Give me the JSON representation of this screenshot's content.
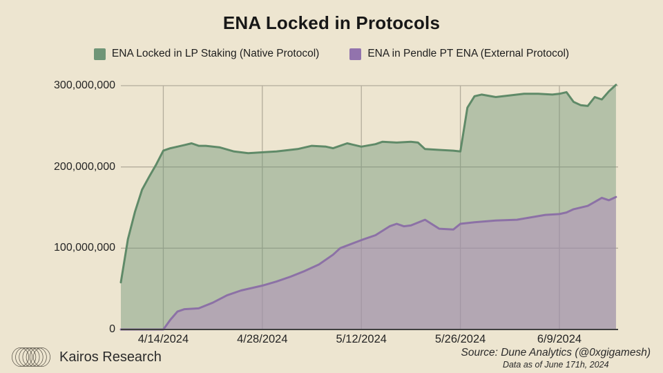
{
  "page": {
    "background": "#EDE5D0"
  },
  "title": "ENA Locked in Protocols",
  "legend": [
    {
      "label": "ENA Locked in LP Staking (Native Protocol)",
      "color": "#6F9577"
    },
    {
      "label": "ENA in Pendle PT ENA (External Protocol)",
      "color": "#9273AD"
    }
  ],
  "footer": {
    "brand": "Kairos Research",
    "source_line1": "Source: Dune Analytics (@0xgigamesh)",
    "source_line2": "Data as of June 171h, 2024"
  },
  "chart_data": {
    "type": "area",
    "stacked": false,
    "title": "ENA Locked in Protocols",
    "values_unit": "ENA tokens, values stored in millions",
    "grid": true,
    "legend_position": "top",
    "colors": {
      "background": "#EDE5D0",
      "gridline": "#B3AC9B",
      "axis_line": "#3F3F3F",
      "green_line": "#5F8A68",
      "green_fill_rgba": "rgba(111,149,119,0.45)",
      "purple_line": "#8C71A6",
      "purple_fill_rgba": "rgba(178,141,189,0.5)"
    },
    "x_axis": {
      "start_date": "4/8/2024",
      "end_date": "6/17/2024",
      "ticks": [
        {
          "date": "4/14",
          "label": "4/14/2024"
        },
        {
          "date": "4/28",
          "label": "4/28/2024"
        },
        {
          "date": "5/12",
          "label": "5/12/2024"
        },
        {
          "date": "5/26",
          "label": "5/26/2024"
        },
        {
          "date": "6/9",
          "label": "6/9/2024"
        }
      ]
    },
    "y_axis": {
      "min": 0,
      "max": 300,
      "ticks": [
        {
          "value": 0,
          "label": "0"
        },
        {
          "value": 100,
          "label": "100,000,000"
        },
        {
          "value": 200,
          "label": "200,000,000"
        },
        {
          "value": 300,
          "label": "300,000,000"
        }
      ]
    },
    "series": [
      {
        "name": "ENA Locked in LP Staking (Native Protocol)",
        "line_color": "#5F8A68",
        "fill_color": "rgba(111,149,119,0.45)",
        "points": [
          [
            "4/8",
            58
          ],
          [
            "4/9",
            111
          ],
          [
            "4/10",
            145
          ],
          [
            "4/11",
            172
          ],
          [
            "4/12",
            188
          ],
          [
            "4/13",
            203
          ],
          [
            "4/14",
            220
          ],
          [
            "4/15",
            223
          ],
          [
            "4/16",
            225
          ],
          [
            "4/17",
            227
          ],
          [
            "4/18",
            229
          ],
          [
            "4/19",
            226
          ],
          [
            "4/20",
            226
          ],
          [
            "4/22",
            224
          ],
          [
            "4/24",
            219
          ],
          [
            "4/26",
            217
          ],
          [
            "4/28",
            218
          ],
          [
            "4/30",
            219
          ],
          [
            "5/3",
            222
          ],
          [
            "5/5",
            226
          ],
          [
            "5/7",
            225
          ],
          [
            "5/8",
            223
          ],
          [
            "5/10",
            229
          ],
          [
            "5/12",
            225
          ],
          [
            "5/14",
            228
          ],
          [
            "5/15",
            231
          ],
          [
            "5/17",
            230
          ],
          [
            "5/19",
            231
          ],
          [
            "5/20",
            230
          ],
          [
            "5/21",
            222
          ],
          [
            "5/23",
            221
          ],
          [
            "5/25",
            220
          ],
          [
            "5/26",
            219
          ],
          [
            "5/27",
            273
          ],
          [
            "5/28",
            287
          ],
          [
            "5/29",
            289
          ],
          [
            "5/31",
            286
          ],
          [
            "6/2",
            288
          ],
          [
            "6/4",
            290
          ],
          [
            "6/6",
            290
          ],
          [
            "6/8",
            289
          ],
          [
            "6/9",
            290
          ],
          [
            "6/10",
            292
          ],
          [
            "6/11",
            280
          ],
          [
            "6/12",
            276
          ],
          [
            "6/13",
            275
          ],
          [
            "6/14",
            286
          ],
          [
            "6/15",
            283
          ],
          [
            "6/16",
            293
          ],
          [
            "6/17",
            301
          ]
        ]
      },
      {
        "name": "ENA in Pendle PT ENA (External Protocol)",
        "line_color": "#8C71A6",
        "fill_color": "rgba(178,141,189,0.5)",
        "points": [
          [
            "4/8",
            0
          ],
          [
            "4/14",
            0
          ],
          [
            "4/15",
            12
          ],
          [
            "4/16",
            22
          ],
          [
            "4/17",
            25
          ],
          [
            "4/19",
            26
          ],
          [
            "4/21",
            33
          ],
          [
            "4/23",
            42
          ],
          [
            "4/25",
            48
          ],
          [
            "4/28",
            54
          ],
          [
            "4/30",
            59
          ],
          [
            "5/2",
            65
          ],
          [
            "5/4",
            72
          ],
          [
            "5/6",
            80
          ],
          [
            "5/8",
            92
          ],
          [
            "5/9",
            100
          ],
          [
            "5/12",
            110
          ],
          [
            "5/14",
            116
          ],
          [
            "5/16",
            127
          ],
          [
            "5/17",
            130
          ],
          [
            "5/18",
            127
          ],
          [
            "5/19",
            128
          ],
          [
            "5/21",
            135
          ],
          [
            "5/23",
            124
          ],
          [
            "5/25",
            123
          ],
          [
            "5/26",
            130
          ],
          [
            "5/28",
            132
          ],
          [
            "5/31",
            134
          ],
          [
            "6/3",
            135
          ],
          [
            "6/5",
            138
          ],
          [
            "6/7",
            141
          ],
          [
            "6/9",
            142
          ],
          [
            "6/10",
            144
          ],
          [
            "6/11",
            148
          ],
          [
            "6/13",
            152
          ],
          [
            "6/14",
            157
          ],
          [
            "6/15",
            162
          ],
          [
            "6/16",
            159
          ],
          [
            "6/17",
            163
          ]
        ]
      }
    ]
  }
}
